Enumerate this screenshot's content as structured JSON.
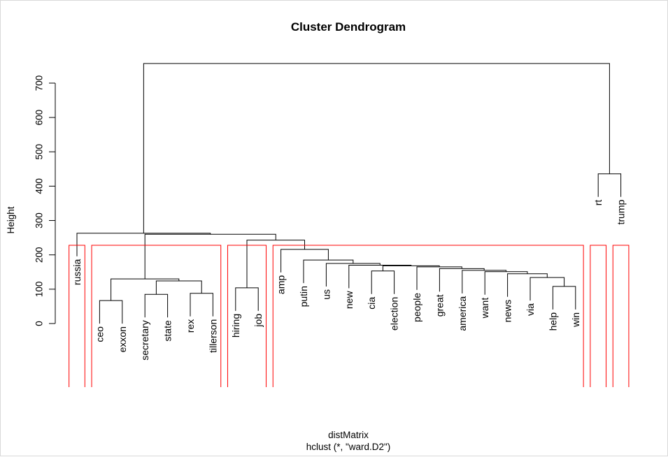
{
  "chart_data": {
    "type": "dendrogram",
    "title": "Cluster Dendrogram",
    "ylabel": "Height",
    "xlabel": "distMatrix",
    "sub": "hclust (*, \"ward.D2\")",
    "ylim": [
      0,
      750
    ],
    "yticks": [
      0,
      100,
      200,
      300,
      400,
      500,
      600,
      700
    ],
    "labels": [
      "russia",
      "ceo",
      "exxon",
      "secretary",
      "state",
      "rex",
      "tillerson",
      "hiring",
      "job",
      "amp",
      "putin",
      "us",
      "new",
      "cia",
      "election",
      "people",
      "great",
      "america",
      "want",
      "news",
      "via",
      "help",
      "win",
      "rt",
      "trump"
    ],
    "merges": [
      {
        "a": "L:help",
        "b": "L:win",
        "h": 108
      },
      {
        "a": "L:via",
        "b": "N:0",
        "h": 134
      },
      {
        "a": "L:news",
        "b": "N:1",
        "h": 145
      },
      {
        "a": "L:want",
        "b": "N:2",
        "h": 151
      },
      {
        "a": "L:america",
        "b": "N:3",
        "h": 155
      },
      {
        "a": "L:great",
        "b": "N:4",
        "h": 160
      },
      {
        "a": "L:people",
        "b": "N:5",
        "h": 165
      },
      {
        "a": "L:cia",
        "b": "L:election",
        "h": 153
      },
      {
        "a": "N:7",
        "b": "N:6",
        "h": 168
      },
      {
        "a": "L:new",
        "b": "N:8",
        "h": 170
      },
      {
        "a": "L:us",
        "b": "N:9",
        "h": 175
      },
      {
        "a": "L:putin",
        "b": "N:10",
        "h": 185
      },
      {
        "a": "L:amp",
        "b": "N:11",
        "h": 216
      },
      {
        "a": "L:hiring",
        "b": "L:job",
        "h": 104
      },
      {
        "a": "N:13",
        "b": "N:12",
        "h": 243
      },
      {
        "a": "L:ceo",
        "b": "L:exxon",
        "h": 67
      },
      {
        "a": "L:secretary",
        "b": "L:state",
        "h": 85
      },
      {
        "a": "L:rex",
        "b": "L:tillerson",
        "h": 88
      },
      {
        "a": "N:16",
        "b": "N:17",
        "h": 124
      },
      {
        "a": "N:15",
        "b": "N:18",
        "h": 130
      },
      {
        "a": "N:19",
        "b": "N:14",
        "h": 260
      },
      {
        "a": "L:russia",
        "b": "N:20",
        "h": 263
      },
      {
        "a": "L:rt",
        "b": "L:trump",
        "h": 436
      },
      {
        "a": "N:21",
        "b": "N:22",
        "h": 757
      }
    ],
    "rect_groups": [
      [
        "russia"
      ],
      [
        "ceo",
        "exxon",
        "secretary",
        "state",
        "rex",
        "tillerson"
      ],
      [
        "hiring",
        "job"
      ],
      [
        "amp",
        "putin",
        "us",
        "new",
        "cia",
        "election",
        "people",
        "great",
        "america",
        "want",
        "news",
        "via",
        "help",
        "win"
      ],
      [
        "rt"
      ],
      [
        "trump"
      ]
    ],
    "rect_height": 228,
    "rect_color": "#ff0000",
    "line_color": "#000000"
  }
}
